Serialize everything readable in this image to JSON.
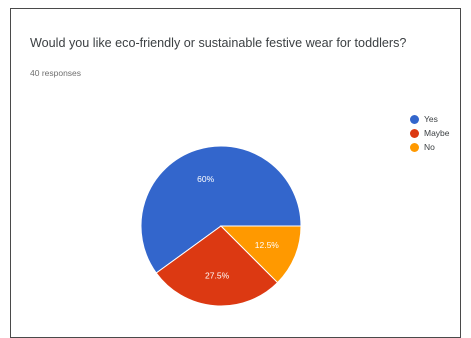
{
  "chart_data": {
    "type": "pie",
    "title": "Would you like eco-friendly or sustainable festive wear for toddlers?",
    "subtitle": "40 responses",
    "slices": [
      {
        "label": "Yes",
        "value": 60.0,
        "display": "60%",
        "color": "#3366cc"
      },
      {
        "label": "Maybe",
        "value": 27.5,
        "display": "27.5%",
        "color": "#dc3912"
      },
      {
        "label": "No",
        "value": 12.5,
        "display": "12.5%",
        "color": "#ff9900"
      }
    ],
    "legend": {
      "placement": "right"
    },
    "start_angle": "3 o'clock, counter-clockwise"
  }
}
